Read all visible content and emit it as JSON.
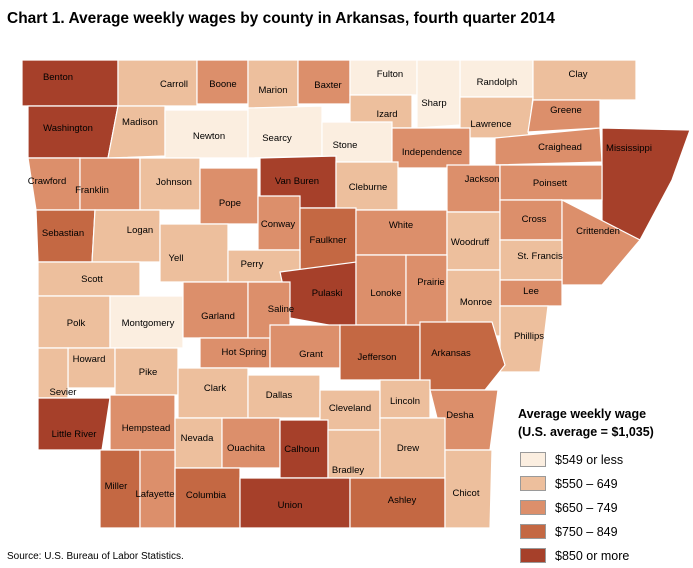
{
  "title": "Chart 1. Average weekly wages by county in Arkansas, fourth quarter 2014",
  "source": "Source: U.S. Bureau of Labor Statistics.",
  "legend": {
    "title_line1": "Average weekly wage",
    "title_line2": "(U.S. average = $1,035)",
    "classes": [
      {
        "label": "$549 or less",
        "color": "#fbeee0"
      },
      {
        "label": "$550 – 649",
        "color": "#edbf9d"
      },
      {
        "label": "$650 – 749",
        "color": "#dc8f6b"
      },
      {
        "label": "$750 – 849",
        "color": "#c46843"
      },
      {
        "label": "$850 or more",
        "color": "#a6402a"
      }
    ]
  },
  "colors": {
    "border": "#ffffff",
    "swatch_border": "#9a9a9a",
    "background": "#ffffff"
  },
  "counties": [
    {
      "name": "Benton",
      "class": 4
    },
    {
      "name": "Carroll",
      "class": 1
    },
    {
      "name": "Boone",
      "class": 2
    },
    {
      "name": "Marion",
      "class": 1
    },
    {
      "name": "Baxter",
      "class": 2
    },
    {
      "name": "Fulton",
      "class": 0
    },
    {
      "name": "Randolph",
      "class": 0
    },
    {
      "name": "Clay",
      "class": 1
    },
    {
      "name": "Washington",
      "class": 4
    },
    {
      "name": "Madison",
      "class": 1
    },
    {
      "name": "Newton",
      "class": 0
    },
    {
      "name": "Searcy",
      "class": 0
    },
    {
      "name": "Izard",
      "class": 1
    },
    {
      "name": "Sharp",
      "class": 0
    },
    {
      "name": "Lawrence",
      "class": 1
    },
    {
      "name": "Greene",
      "class": 2
    },
    {
      "name": "Stone",
      "class": 0
    },
    {
      "name": "Independence",
      "class": 2
    },
    {
      "name": "Craighead",
      "class": 2
    },
    {
      "name": "Mississippi",
      "class": 4
    },
    {
      "name": "Crawford",
      "class": 2
    },
    {
      "name": "Franklin",
      "class": 2
    },
    {
      "name": "Johnson",
      "class": 1
    },
    {
      "name": "Van Buren",
      "class": 4
    },
    {
      "name": "Cleburne",
      "class": 1
    },
    {
      "name": "Jackson",
      "class": 2
    },
    {
      "name": "Poinsett",
      "class": 2
    },
    {
      "name": "Pope",
      "class": 2
    },
    {
      "name": "Conway",
      "class": 2
    },
    {
      "name": "Sebastian",
      "class": 3
    },
    {
      "name": "Logan",
      "class": 1
    },
    {
      "name": "Faulkner",
      "class": 3
    },
    {
      "name": "White",
      "class": 2
    },
    {
      "name": "Woodruff",
      "class": 1
    },
    {
      "name": "Cross",
      "class": 2
    },
    {
      "name": "Crittenden",
      "class": 2
    },
    {
      "name": "Yell",
      "class": 1
    },
    {
      "name": "Perry",
      "class": 1
    },
    {
      "name": "St. Francis",
      "class": 1
    },
    {
      "name": "Scott",
      "class": 1
    },
    {
      "name": "Pulaski",
      "class": 4
    },
    {
      "name": "Lonoke",
      "class": 2
    },
    {
      "name": "Prairie",
      "class": 2
    },
    {
      "name": "Lee",
      "class": 2
    },
    {
      "name": "Monroe",
      "class": 1
    },
    {
      "name": "Polk",
      "class": 1
    },
    {
      "name": "Montgomery",
      "class": 0
    },
    {
      "name": "Garland",
      "class": 2
    },
    {
      "name": "Saline",
      "class": 2
    },
    {
      "name": "Phillips",
      "class": 1
    },
    {
      "name": "Hot Spring",
      "class": 2
    },
    {
      "name": "Grant",
      "class": 2
    },
    {
      "name": "Jefferson",
      "class": 3
    },
    {
      "name": "Arkansas",
      "class": 3
    },
    {
      "name": "Howard",
      "class": 1
    },
    {
      "name": "Pike",
      "class": 1
    },
    {
      "name": "Clark",
      "class": 1
    },
    {
      "name": "Sevier",
      "class": 1
    },
    {
      "name": "Dallas",
      "class": 1
    },
    {
      "name": "Cleveland",
      "class": 1
    },
    {
      "name": "Lincoln",
      "class": 1
    },
    {
      "name": "Desha",
      "class": 2
    },
    {
      "name": "Little River",
      "class": 4
    },
    {
      "name": "Hempstead",
      "class": 2
    },
    {
      "name": "Nevada",
      "class": 1
    },
    {
      "name": "Ouachita",
      "class": 2
    },
    {
      "name": "Calhoun",
      "class": 4
    },
    {
      "name": "Drew",
      "class": 1
    },
    {
      "name": "Bradley",
      "class": 1
    },
    {
      "name": "Miller",
      "class": 3
    },
    {
      "name": "Lafayette",
      "class": 2
    },
    {
      "name": "Columbia",
      "class": 3
    },
    {
      "name": "Union",
      "class": 4
    },
    {
      "name": "Ashley",
      "class": 3
    },
    {
      "name": "Chicot",
      "class": 1
    }
  ]
}
